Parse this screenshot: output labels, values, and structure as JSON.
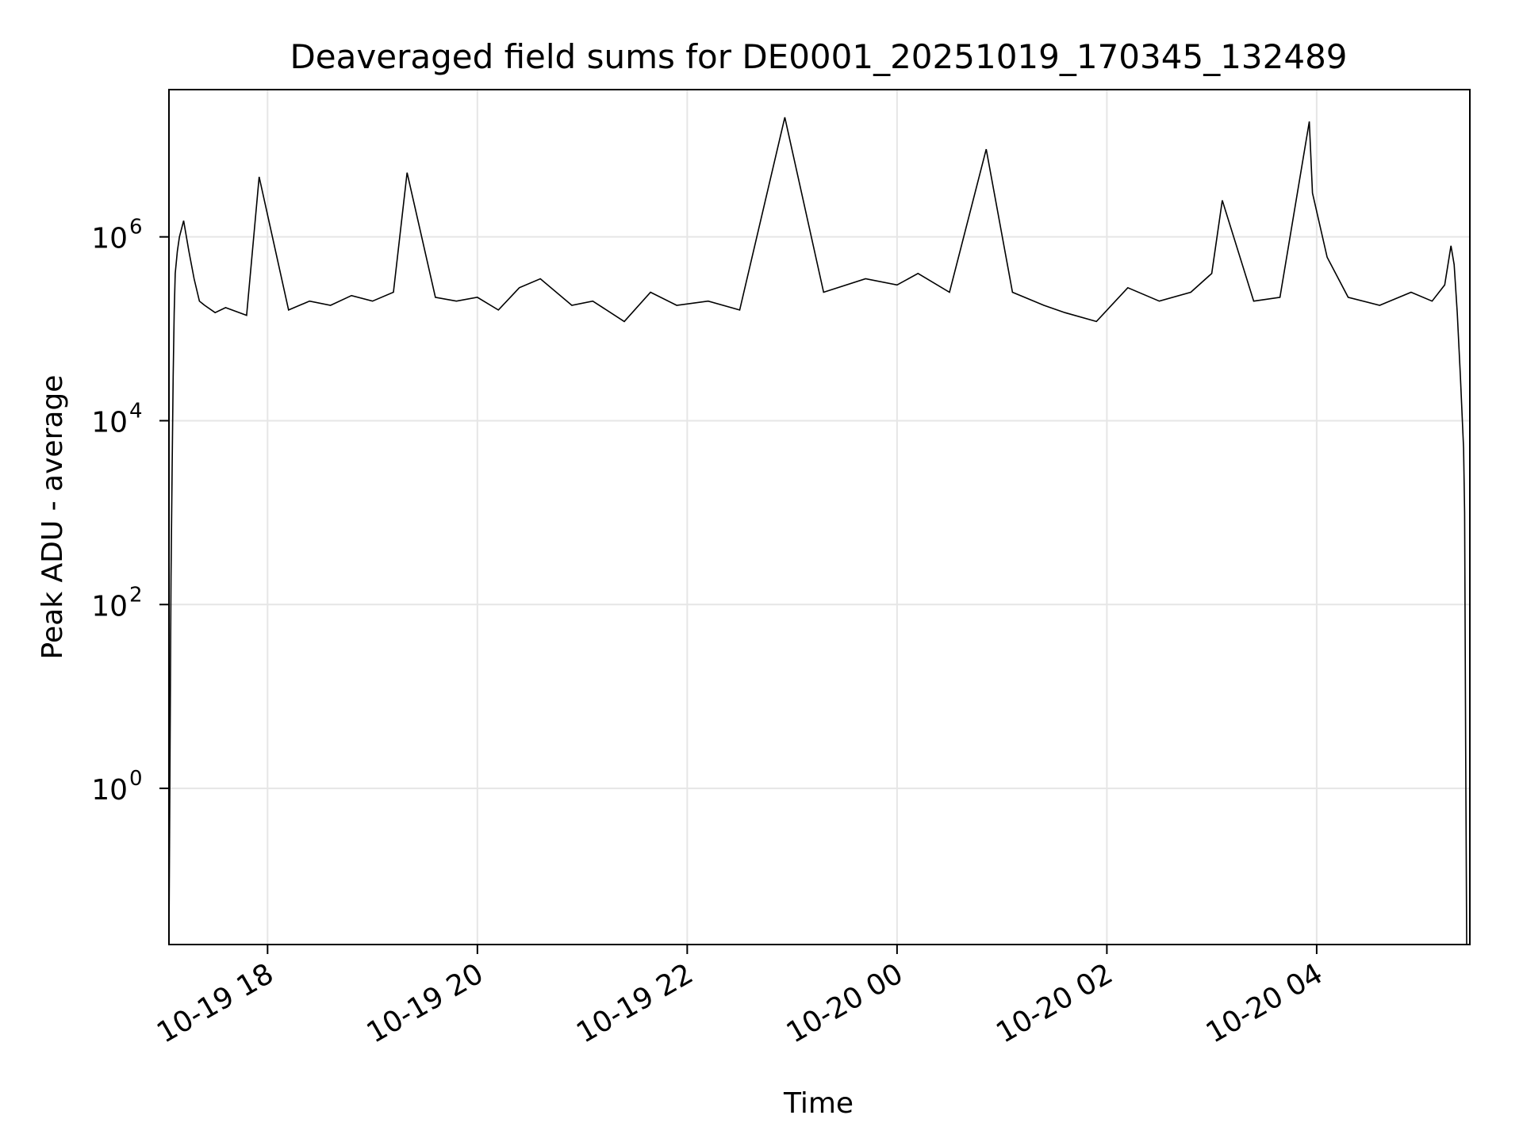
{
  "chart_data": {
    "type": "line",
    "title": "Deaveraged field sums for DE0001_20251019_170345_132489",
    "xlabel": "Time",
    "ylabel": "Peak ADU - average",
    "yscale": "log",
    "ylim": [
      0.02,
      40000000
    ],
    "xlim_hours": [
      17.06,
      29.46
    ],
    "grid": true,
    "legend": "none",
    "line_color": "#000000",
    "x_ticks": [
      {
        "hour": 18,
        "label": "10-19 18"
      },
      {
        "hour": 20,
        "label": "10-19 20"
      },
      {
        "hour": 22,
        "label": "10-19 22"
      },
      {
        "hour": 24,
        "label": "10-20 00"
      },
      {
        "hour": 26,
        "label": "10-20 02"
      },
      {
        "hour": 28,
        "label": "10-20 04"
      }
    ],
    "y_ticks": [
      {
        "exp": 0,
        "base": "10",
        "sup": "0"
      },
      {
        "exp": 2,
        "base": "10",
        "sup": "2"
      },
      {
        "exp": 4,
        "base": "10",
        "sup": "4"
      },
      {
        "exp": 6,
        "base": "10",
        "sup": "6"
      }
    ],
    "series": [
      {
        "name": "Peak ADU - average",
        "x_hours": [
          17.06,
          17.08,
          17.09,
          17.1,
          17.11,
          17.12,
          17.14,
          17.16,
          17.2,
          17.25,
          17.3,
          17.35,
          17.4,
          17.5,
          17.6,
          17.8,
          17.92,
          18.2,
          18.4,
          18.6,
          18.8,
          19.0,
          19.2,
          19.33,
          19.6,
          19.8,
          20.0,
          20.2,
          20.4,
          20.6,
          20.9,
          21.1,
          21.4,
          21.65,
          21.9,
          22.2,
          22.5,
          22.93,
          23.3,
          23.7,
          24.0,
          24.2,
          24.5,
          24.85,
          25.1,
          25.4,
          25.6,
          25.9,
          26.2,
          26.5,
          26.8,
          27.0,
          27.1,
          27.4,
          27.65,
          27.93,
          27.96,
          28.1,
          28.3,
          28.6,
          28.9,
          29.1,
          29.22,
          29.28,
          29.31,
          29.34,
          29.37,
          29.4,
          29.41,
          29.42,
          29.43
        ],
        "values": [
          0.02,
          200,
          3000,
          30000,
          150000,
          400000,
          700000,
          1000000,
          1500000,
          700000,
          350000,
          200000,
          180000,
          150000,
          170000,
          140000,
          4500000,
          160000,
          200000,
          180000,
          230000,
          200000,
          250000,
          5000000,
          220000,
          200000,
          220000,
          160000,
          280000,
          350000,
          180000,
          200000,
          120000,
          250000,
          180000,
          200000,
          160000,
          20000000,
          250000,
          350000,
          300000,
          400000,
          250000,
          9000000,
          250000,
          180000,
          150000,
          120000,
          280000,
          200000,
          250000,
          400000,
          2500000,
          200000,
          220000,
          18000000,
          3000000,
          600000,
          220000,
          180000,
          250000,
          200000,
          300000,
          800000,
          500000,
          150000,
          30000,
          5000,
          1000,
          3,
          0.02
        ]
      }
    ]
  }
}
